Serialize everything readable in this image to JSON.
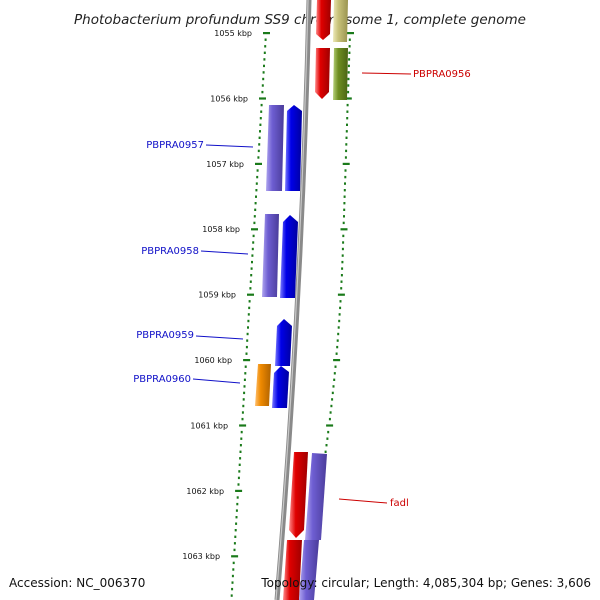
{
  "title": "Photobacterium profundum SS9 chromosome 1, complete genome",
  "footer": {
    "accession": "Accession: NC_006370",
    "topology": "Topology: circular; Length: 4,085,304 bp; Genes: 3,606"
  },
  "ruler": {
    "unit": "kbp",
    "major_ticks": [
      {
        "kbp": 1055,
        "label": "1055 kbp"
      },
      {
        "kbp": 1056,
        "label": "1056 kbp"
      },
      {
        "kbp": 1057,
        "label": "1057 kbp"
      },
      {
        "kbp": 1058,
        "label": "1058 kbp"
      },
      {
        "kbp": 1059,
        "label": "1059 kbp"
      },
      {
        "kbp": 1060,
        "label": "1060 kbp"
      },
      {
        "kbp": 1061,
        "label": "1061 kbp"
      },
      {
        "kbp": 1062,
        "label": "1062 kbp"
      },
      {
        "kbp": 1063,
        "label": "1063 kbp"
      }
    ]
  },
  "colors": {
    "ruler": "#1a7a1a",
    "backbone": "#8a8a8a",
    "red_gene": "#e00000",
    "olive_gene": "#6f8f22",
    "khaki_gene": "#c8c27a",
    "blue_gene": "#0000e8",
    "lavender_gene": "#6e5ed2",
    "orange_gene": "#ef8a00",
    "label_blue": "#1010c8",
    "label_red": "#cc0000"
  },
  "genes": [
    {
      "label": "PBPRA0956",
      "label_color": "red",
      "label_side": "right"
    },
    {
      "label": "PBPRA0957",
      "label_color": "blue",
      "label_side": "left"
    },
    {
      "label": "PBPRA0958",
      "label_color": "blue",
      "label_side": "left"
    },
    {
      "label": "PBPRA0959",
      "label_color": "blue",
      "label_side": "left"
    },
    {
      "label": "PBPRA0960",
      "label_color": "blue",
      "label_side": "left"
    },
    {
      "label": "fadl",
      "label_color": "red",
      "label_side": "right"
    }
  ]
}
